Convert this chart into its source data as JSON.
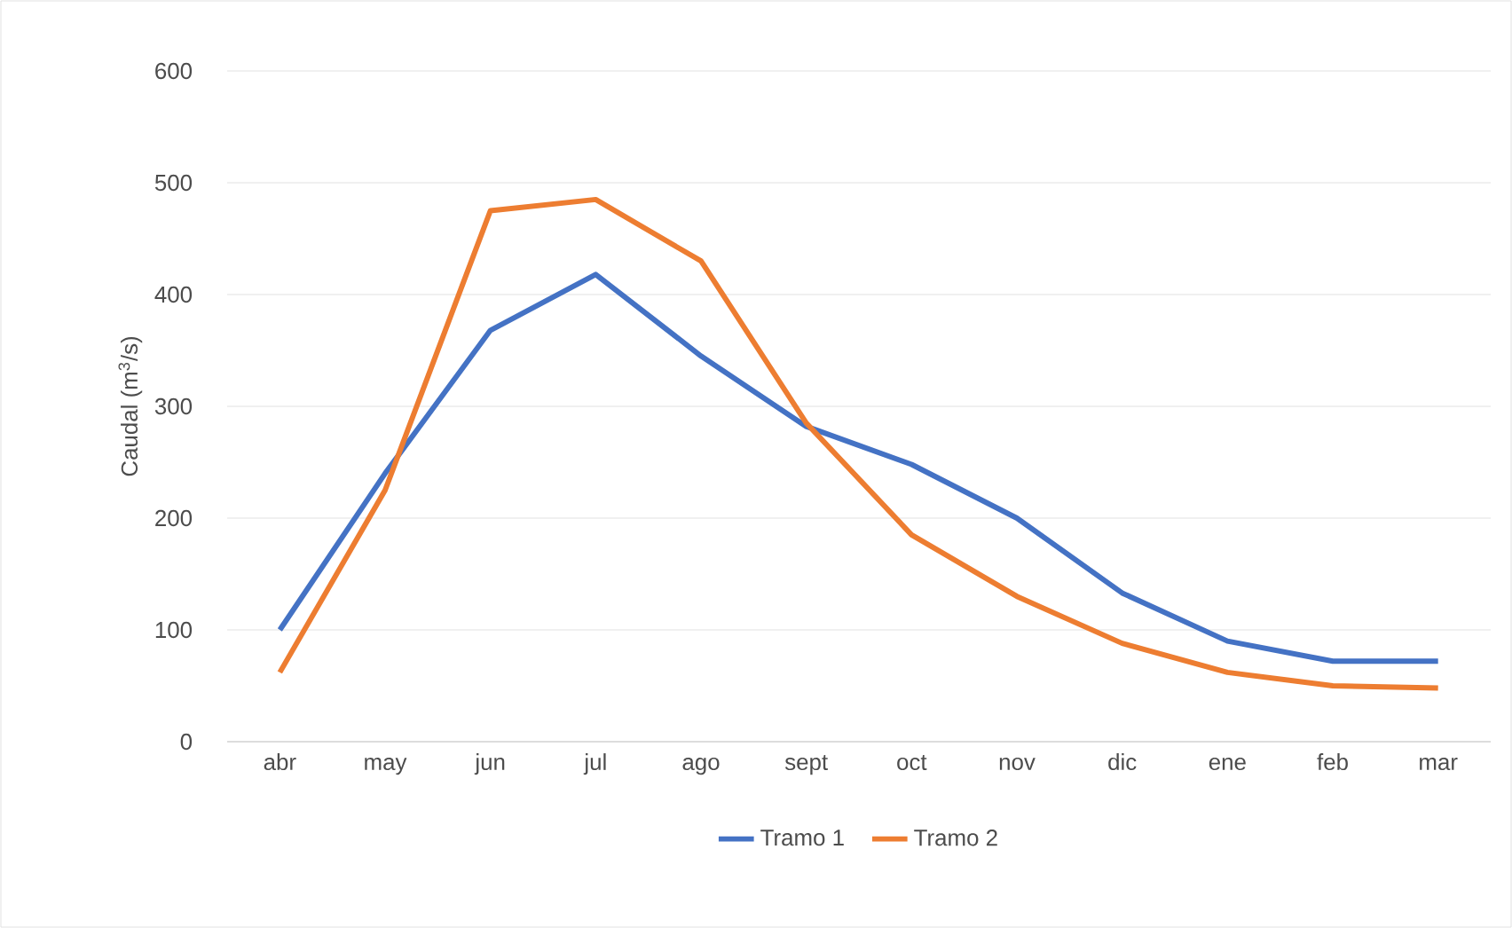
{
  "chart_data": {
    "type": "line",
    "ylabel": "Caudal (m$^{3}$/s)",
    "categories": [
      "abr",
      "may",
      "jun",
      "jul",
      "ago",
      "sept",
      "oct",
      "nov",
      "dic",
      "ene",
      "feb",
      "mar"
    ],
    "series": [
      {
        "name": "Tramo 1",
        "color": "#4472c4",
        "values": [
          100,
          240,
          368,
          418,
          345,
          282,
          248,
          200,
          133,
          90,
          72,
          72
        ]
      },
      {
        "name": "Tramo 2",
        "color": "#ed7d31",
        "values": [
          62,
          225,
          475,
          485,
          430,
          285,
          185,
          130,
          88,
          62,
          50,
          48
        ]
      }
    ],
    "ylim": [
      0,
      600
    ],
    "yticks": [
      0,
      100,
      200,
      300,
      400,
      500,
      600
    ],
    "grid": "y",
    "legend": "bottom",
    "marker": "none",
    "line_style": "solid"
  }
}
